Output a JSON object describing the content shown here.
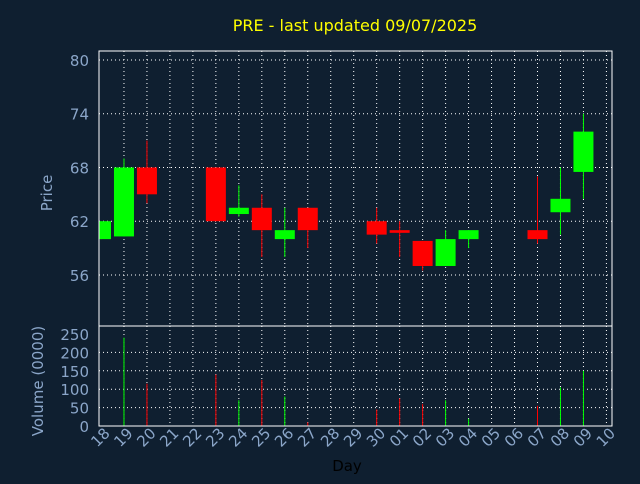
{
  "chart_data": {
    "type": "candlestick",
    "title": "PRE - last updated 09/07/2025",
    "xlabel": "Day",
    "price_panel": {
      "ylabel": "Price",
      "ylim": [
        50.3,
        81
      ],
      "yticks": [
        56,
        62,
        68,
        74,
        80
      ]
    },
    "volume_panel": {
      "ylabel": "Volume (0000)",
      "ylim": [
        0,
        250
      ],
      "yticks": [
        0,
        50,
        100,
        150,
        200,
        250
      ]
    },
    "x_tick_labels": [
      "18",
      "19",
      "20",
      "21",
      "22",
      "23",
      "24",
      "25",
      "26",
      "27",
      "28",
      "29",
      "30",
      "01",
      "02",
      "03",
      "04",
      "05",
      "06",
      "07",
      "08",
      "09",
      "10"
    ],
    "colors": {
      "background": "#0f1f30",
      "plot_background": "#0f1f30",
      "title": "#ffff00",
      "axis_text": "#8ba6c9",
      "grid": "#ffffff",
      "up": "#00ff00",
      "down": "#ff0000"
    },
    "grid": true,
    "candles": [
      {
        "day": "18",
        "open": 60.0,
        "high": 62.0,
        "low": 60.0,
        "close": 62.0,
        "volume": 0
      },
      {
        "day": "19",
        "open": 60.3,
        "high": 69.0,
        "low": 60.3,
        "close": 68.0,
        "volume": 240
      },
      {
        "day": "20",
        "open": 68.0,
        "high": 71.0,
        "low": 64.0,
        "close": 65.0,
        "volume": 115
      },
      {
        "day": "23",
        "open": 68.0,
        "high": 68.0,
        "low": 62.0,
        "close": 62.0,
        "volume": 140
      },
      {
        "day": "24",
        "open": 62.8,
        "high": 66.0,
        "low": 62.5,
        "close": 63.5,
        "volume": 70
      },
      {
        "day": "25",
        "open": 63.5,
        "high": 65.0,
        "low": 58.0,
        "close": 61.0,
        "volume": 125
      },
      {
        "day": "26",
        "open": 60.0,
        "high": 63.5,
        "low": 58.0,
        "close": 61.0,
        "volume": 80
      },
      {
        "day": "27",
        "open": 63.5,
        "high": 63.5,
        "low": 59.0,
        "close": 61.0,
        "volume": 10
      },
      {
        "day": "30",
        "open": 62.0,
        "high": 63.5,
        "low": 59.5,
        "close": 60.5,
        "volume": 45
      },
      {
        "day": "01",
        "open": 61.0,
        "high": 62.0,
        "low": 58.0,
        "close": 60.7,
        "volume": 75
      },
      {
        "day": "02",
        "open": 59.8,
        "high": 59.8,
        "low": 56.5,
        "close": 57.0,
        "volume": 60
      },
      {
        "day": "03",
        "open": 57.0,
        "high": 61.0,
        "low": 57.0,
        "close": 60.0,
        "volume": 70
      },
      {
        "day": "04",
        "open": 60.0,
        "high": 61.0,
        "low": 59.0,
        "close": 61.0,
        "volume": 20
      },
      {
        "day": "07",
        "open": 61.0,
        "high": 67.0,
        "low": 59.5,
        "close": 60.0,
        "volume": 55
      },
      {
        "day": "08",
        "open": 63.0,
        "high": 68.0,
        "low": 60.5,
        "close": 64.5,
        "volume": 105
      },
      {
        "day": "09",
        "open": 67.5,
        "high": 74.0,
        "low": 64.5,
        "close": 72.0,
        "volume": 150
      }
    ]
  }
}
